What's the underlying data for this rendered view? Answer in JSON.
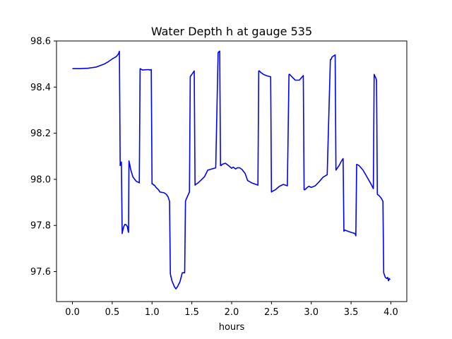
{
  "chart_data": {
    "type": "line",
    "title": "Water Depth h at gauge 535",
    "xlabel": "hours",
    "ylabel": "",
    "xlim": [
      -0.2,
      4.2
    ],
    "ylim": [
      97.47,
      98.6
    ],
    "xticks": [
      0.0,
      0.5,
      1.0,
      1.5,
      2.0,
      2.5,
      3.0,
      3.5,
      4.0
    ],
    "xtick_labels": [
      "0.0",
      "0.5",
      "1.0",
      "1.5",
      "2.0",
      "2.5",
      "3.0",
      "3.5",
      "4.0"
    ],
    "yticks": [
      97.6,
      97.8,
      98.0,
      98.2,
      98.4,
      98.6
    ],
    "ytick_labels": [
      "97.6",
      "97.8",
      "98.0",
      "98.2",
      "98.4",
      "98.6"
    ],
    "grid": false,
    "colors": {
      "line": "#0000ff",
      "axes": "#000000",
      "background": "#ffffff"
    },
    "series": [
      {
        "x": [
          0.0,
          0.1,
          0.2,
          0.3,
          0.4,
          0.45,
          0.5,
          0.55,
          0.58,
          0.59,
          0.6,
          0.61,
          0.615,
          0.625,
          0.63,
          0.645,
          0.66,
          0.675,
          0.69,
          0.7,
          0.705,
          0.71,
          0.72,
          0.73,
          0.76,
          0.8,
          0.84,
          0.85,
          0.86,
          0.88,
          0.91,
          0.96,
          0.97,
          0.99,
          1.0,
          1.01,
          1.02,
          1.03,
          1.05,
          1.08,
          1.1,
          1.15,
          1.18,
          1.2,
          1.22,
          1.23,
          1.25,
          1.28,
          1.3,
          1.32,
          1.35,
          1.38,
          1.41,
          1.42,
          1.43,
          1.47,
          1.48,
          1.5,
          1.53,
          1.54,
          1.55,
          1.58,
          1.62,
          1.66,
          1.7,
          1.75,
          1.8,
          1.83,
          1.84,
          1.85,
          1.86,
          1.87,
          1.88,
          1.92,
          1.96,
          2.0,
          2.02,
          2.05,
          2.07,
          2.1,
          2.13,
          2.17,
          2.2,
          2.25,
          2.29,
          2.33,
          2.34,
          2.35,
          2.36,
          2.4,
          2.45,
          2.49,
          2.5,
          2.51,
          2.55,
          2.6,
          2.65,
          2.7,
          2.72,
          2.73,
          2.75,
          2.8,
          2.85,
          2.9,
          2.91,
          2.92,
          2.95,
          2.97,
          3.0,
          3.05,
          3.1,
          3.15,
          3.2,
          3.24,
          3.25,
          3.26,
          3.3,
          3.31,
          3.32,
          3.35,
          3.38,
          3.4,
          3.41,
          3.42,
          3.46,
          3.5,
          3.55,
          3.56,
          3.57,
          3.6,
          3.65,
          3.7,
          3.75,
          3.78,
          3.79,
          3.8,
          3.81,
          3.82,
          3.83,
          3.85,
          3.88,
          3.9,
          3.91,
          3.93,
          3.95,
          3.96,
          3.97,
          3.98,
          3.99
        ],
        "y": [
          98.48,
          98.48,
          98.482,
          98.487,
          98.5,
          98.51,
          98.522,
          98.532,
          98.545,
          98.555,
          98.06,
          98.07,
          98.075,
          97.765,
          97.775,
          97.795,
          97.805,
          97.803,
          97.795,
          97.775,
          97.77,
          98.08,
          98.065,
          98.045,
          98.01,
          97.992,
          97.985,
          98.48,
          98.478,
          98.474,
          98.475,
          98.476,
          98.474,
          98.476,
          97.98,
          97.98,
          97.975,
          97.975,
          97.965,
          97.955,
          97.945,
          97.942,
          97.935,
          97.925,
          97.905,
          97.59,
          97.56,
          97.535,
          97.525,
          97.535,
          97.555,
          97.595,
          97.595,
          97.905,
          97.915,
          97.945,
          98.445,
          98.455,
          98.47,
          97.975,
          97.978,
          97.985,
          97.998,
          98.012,
          98.04,
          98.045,
          98.05,
          98.55,
          98.553,
          98.556,
          98.06,
          98.06,
          98.065,
          98.07,
          98.06,
          98.048,
          98.053,
          98.045,
          98.05,
          98.05,
          98.043,
          98.025,
          97.995,
          97.985,
          97.98,
          97.975,
          98.47,
          98.47,
          98.465,
          98.455,
          98.448,
          98.445,
          97.945,
          97.948,
          97.955,
          97.97,
          97.978,
          97.972,
          98.455,
          98.455,
          98.447,
          98.43,
          98.43,
          98.45,
          97.955,
          97.955,
          97.965,
          97.97,
          97.965,
          97.972,
          97.99,
          98.01,
          98.02,
          98.52,
          98.52,
          98.53,
          98.54,
          98.04,
          98.045,
          98.06,
          98.08,
          98.09,
          97.775,
          97.78,
          97.775,
          97.77,
          97.765,
          97.755,
          98.065,
          98.06,
          98.04,
          98.01,
          97.98,
          97.96,
          98.455,
          98.447,
          98.44,
          98.43,
          97.935,
          97.93,
          97.918,
          97.905,
          97.595,
          97.575,
          97.57,
          97.575,
          97.56,
          97.57,
          97.565
        ]
      }
    ]
  }
}
